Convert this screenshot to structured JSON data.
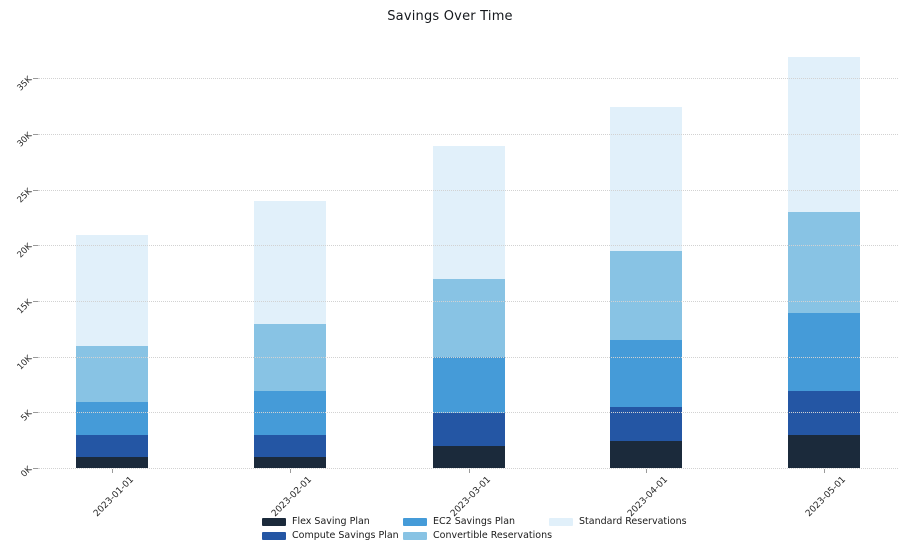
{
  "title": "Savings Over Time",
  "chart_data": {
    "type": "bar",
    "stacked": true,
    "title": "Savings Over Time",
    "categories": [
      "2023-01-01",
      "2023-02-01",
      "2023-03-01",
      "2023-04-01",
      "2023-05-01"
    ],
    "series": [
      {
        "name": "Flex Saving Plan",
        "color": "#1b2a3b",
        "values": [
          1000,
          1000,
          2000,
          2500,
          3000
        ]
      },
      {
        "name": "Compute Savings Plan",
        "color": "#2456a4",
        "values": [
          2000,
          2000,
          3000,
          3000,
          4000
        ]
      },
      {
        "name": "EC2 Savings Plan",
        "color": "#459bd8",
        "values": [
          3000,
          4000,
          5000,
          6000,
          7000
        ]
      },
      {
        "name": "Convertible Reservations",
        "color": "#88c3e4",
        "values": [
          5000,
          6000,
          7000,
          8000,
          9000
        ]
      },
      {
        "name": "Standard Reservations",
        "color": "#e1f0fa",
        "values": [
          10000,
          11000,
          12000,
          13000,
          14000
        ]
      }
    ],
    "stack_totals": [
      21000,
      24000,
      29000,
      32500,
      37000
    ],
    "y_tick_labels": [
      "0K",
      "5K",
      "10K",
      "15K",
      "20K",
      "25K",
      "30K",
      "35K"
    ],
    "y_tick_values": [
      0,
      5000,
      10000,
      15000,
      20000,
      25000,
      30000,
      35000
    ],
    "ylim": [
      0,
      37500
    ],
    "xlabel": "",
    "ylabel": "",
    "grid": "horizontal dotted, drawn over bars",
    "legend_position": "bottom, 3 columns x 2 rows",
    "text_color": "#262626",
    "gridline_color": "#d2d2d2"
  }
}
